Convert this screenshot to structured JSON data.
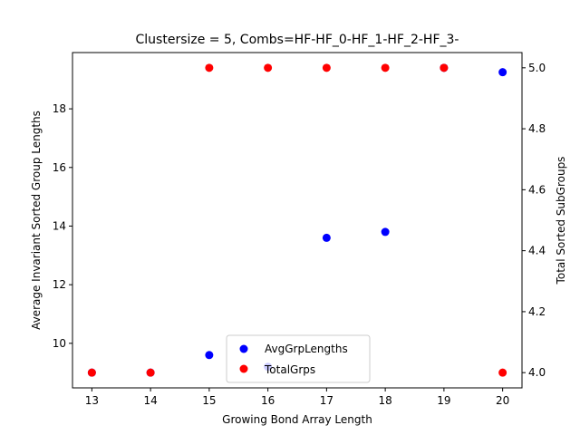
{
  "chart_data": {
    "type": "scatter",
    "title": "Clustersize = 5, Combs=HF-HF_0-HF_1-HF_2-HF_3-",
    "xlabel": "Growing Bond Array Length",
    "ylabel_left": "Average Invariant Sorted Group Lengths",
    "ylabel_right": "Total Sorted SubGroups",
    "x_ticks": [
      13,
      14,
      15,
      16,
      17,
      18,
      19,
      20
    ],
    "xlim": [
      12.67,
      20.33
    ],
    "y_left_ticks": [
      10,
      12,
      14,
      16,
      18
    ],
    "y_left_lim": [
      8.48,
      19.92
    ],
    "y_right_ticks": [
      4.0,
      4.2,
      4.4,
      4.6,
      4.8,
      5.0
    ],
    "y_right_tick_labels": [
      "4.0",
      "4.2",
      "4.4",
      "4.6",
      "4.8",
      "5.0"
    ],
    "y_right_lim": [
      3.95,
      5.05
    ],
    "legend_position": "lower center",
    "series": [
      {
        "name": "AvgGrpLengths",
        "axis": "left",
        "color": "#0000ff",
        "x": [
          13,
          14,
          15,
          16,
          17,
          18,
          19,
          20
        ],
        "y": [
          9.0,
          9.0,
          9.6,
          9.2,
          13.6,
          13.8,
          19.4,
          19.25
        ]
      },
      {
        "name": "TotalGrps",
        "axis": "right",
        "color": "#ff0000",
        "x": [
          13,
          14,
          15,
          16,
          17,
          18,
          19,
          20
        ],
        "y": [
          4,
          4,
          5,
          5,
          5,
          5,
          5,
          4
        ]
      }
    ]
  }
}
